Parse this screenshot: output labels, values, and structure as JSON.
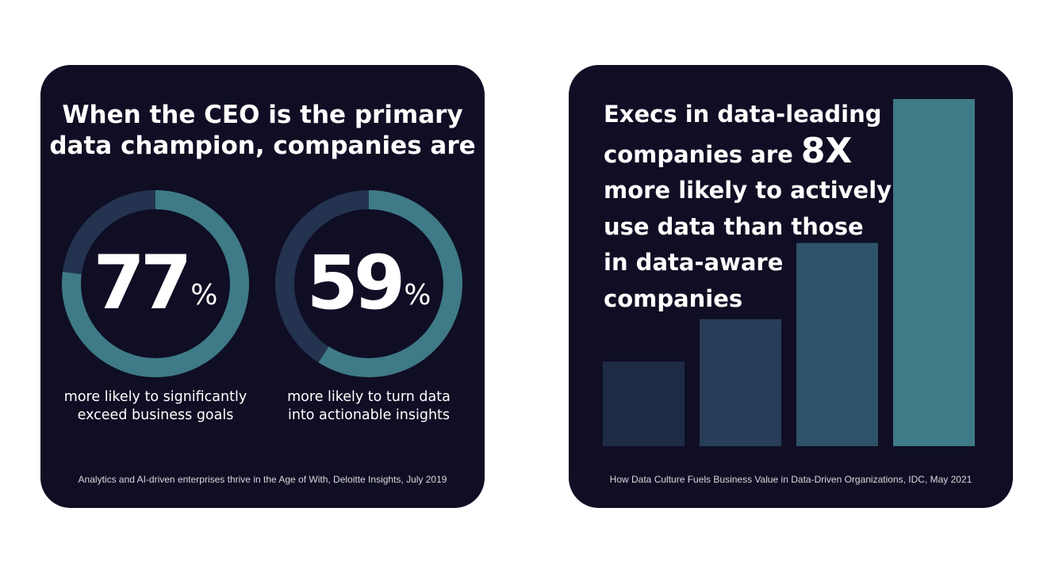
{
  "left_card": {
    "title_lines": [
      "When the CEO is the primary",
      "data champion, companies are"
    ],
    "stats": [
      {
        "value": "77",
        "unit": "%",
        "fraction": 0.77,
        "caption_lines": [
          "more likely to significantly",
          "exceed business goals"
        ]
      },
      {
        "value": "59",
        "unit": "%",
        "fraction": 0.59,
        "caption_lines": [
          "more likely to turn data",
          "into actionable insights"
        ]
      }
    ],
    "source": "Analytics and AI-driven enterprises thrive in the Age of With, Deloitte Insights, July 2019"
  },
  "right_card": {
    "text_lines": [
      "Execs in data-leading",
      "companies are",
      "more likely to actively",
      "use data than those",
      "in data-aware",
      "companies"
    ],
    "multiplier": "8X",
    "source": "How Data Culture Fuels Business Value in Data-Driven Organizations, IDC, May 2021"
  },
  "colors": {
    "background": "#0f0e24",
    "ring_track": "#233350",
    "ring_fill": "#3f7a87",
    "bars": [
      "#1d2b45",
      "#283d58",
      "#2e5368",
      "#3f7a87"
    ]
  },
  "chart_data": [
    {
      "type": "pie",
      "title": "When the CEO is the primary data champion, companies are",
      "series": [
        {
          "name": "more likely to significantly exceed business goals",
          "values": [
            77,
            23
          ]
        },
        {
          "name": "more likely to turn data into actionable insights",
          "values": [
            59,
            41
          ]
        }
      ]
    },
    {
      "type": "bar",
      "title": "Execs in data-leading companies are 8X more likely to actively use data than those in data-aware companies",
      "categories": [
        "",
        "",
        "",
        ""
      ],
      "values": [
        1.0,
        1.5,
        2.4,
        4.1
      ],
      "ylim": [
        0,
        4.1
      ]
    }
  ]
}
